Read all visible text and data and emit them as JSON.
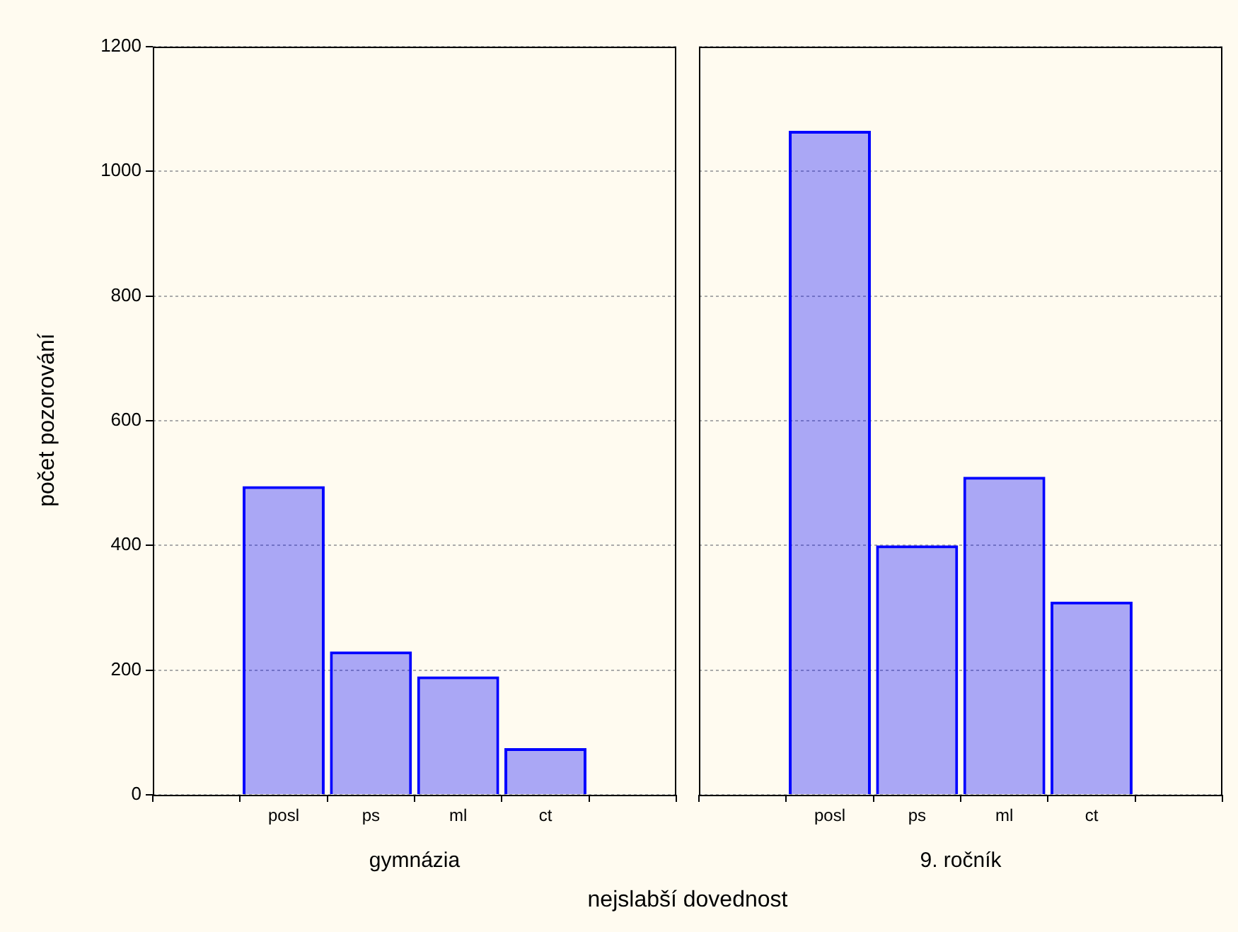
{
  "chart_data": [
    {
      "type": "bar",
      "title": "gymnázia",
      "xlabel": "nejslabší dovednost",
      "ylabel": "počet pozorování",
      "categories": [
        null,
        "posl",
        "ps",
        "ml",
        "ct",
        null
      ],
      "values": [
        null,
        495,
        230,
        190,
        75,
        null
      ],
      "color": "#0000ff",
      "ylim": [
        0,
        1200
      ],
      "yticks": [
        0,
        200,
        400,
        600,
        800,
        1000,
        1200
      ],
      "grid": "y",
      "legend": false
    },
    {
      "type": "bar",
      "title": "9. ročník",
      "categories": [
        null,
        "posl",
        "ps",
        "ml",
        "ct",
        null
      ],
      "values": [
        null,
        1065,
        400,
        510,
        310,
        null
      ],
      "color": "#0000ff",
      "ylim": [
        0,
        1200
      ],
      "yticks": [
        0,
        200,
        400,
        600,
        800,
        1000,
        1200
      ],
      "grid": "y",
      "legend": false,
      "tick_labels": "x"
    }
  ]
}
